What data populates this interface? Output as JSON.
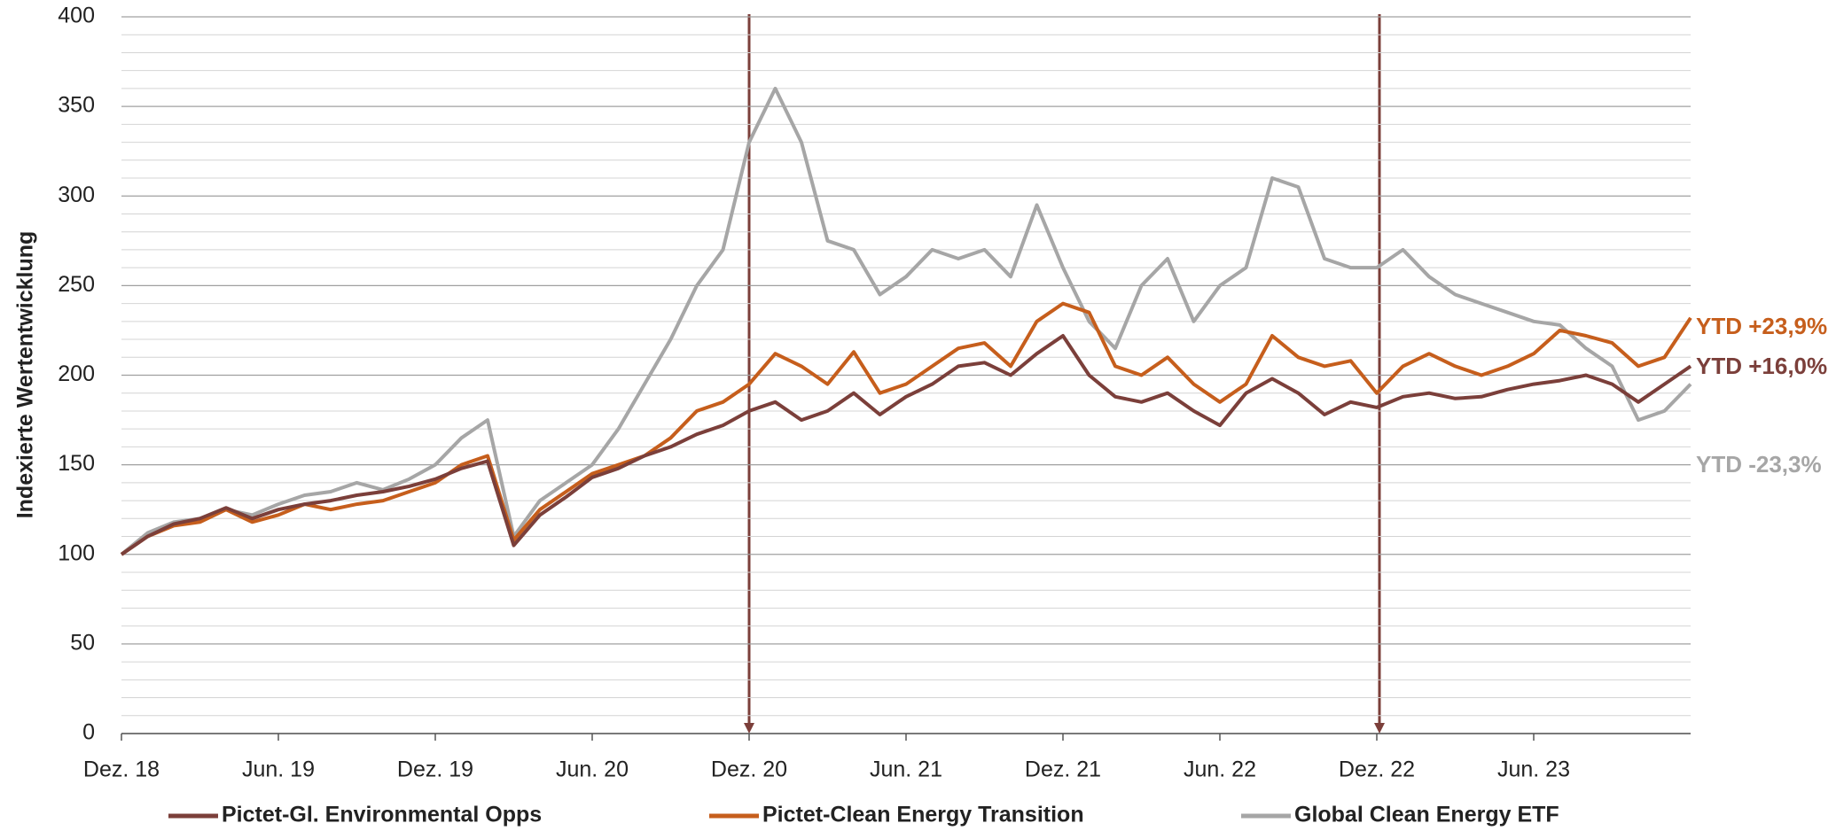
{
  "chart_data": {
    "type": "line",
    "y_label": "Indexierte Wertentwicklung",
    "categories": [
      "Dez. 18",
      null,
      null,
      null,
      null,
      null,
      "Jun. 19",
      null,
      null,
      null,
      null,
      null,
      "Dez. 19",
      null,
      null,
      null,
      null,
      null,
      "Jun. 20",
      null,
      null,
      null,
      null,
      null,
      "Dez. 20",
      null,
      null,
      null,
      null,
      null,
      "Jun. 21",
      null,
      null,
      null,
      null,
      null,
      "Dez. 21",
      null,
      null,
      null,
      null,
      null,
      "Jun. 22",
      null,
      null,
      null,
      null,
      null,
      "Dez. 22",
      null,
      null,
      null,
      null,
      null,
      "Jun. 23",
      null,
      null,
      null,
      null,
      null,
      null
    ],
    "series": [
      {
        "name": "Pictet-Gl. Environmental Opps",
        "color": "#7b3f3a",
        "values": [
          100,
          110,
          117,
          120,
          126,
          120,
          125,
          128,
          130,
          133,
          135,
          138,
          142,
          148,
          152,
          105,
          122,
          132,
          143,
          148,
          155,
          160,
          167,
          172,
          180,
          185,
          175,
          180,
          190,
          178,
          188,
          195,
          205,
          207,
          200,
          212,
          222,
          200,
          188,
          185,
          190,
          180,
          172,
          190,
          198,
          190,
          178,
          185,
          182,
          188,
          190,
          187,
          188,
          192,
          195,
          197,
          200,
          195,
          185,
          195,
          205
        ]
      },
      {
        "name": "Pictet-Clean Energy Transition",
        "color": "#c65e1c",
        "values": [
          100,
          110,
          116,
          118,
          125,
          118,
          122,
          128,
          125,
          128,
          130,
          135,
          140,
          150,
          155,
          108,
          125,
          135,
          145,
          150,
          155,
          165,
          180,
          185,
          195,
          212,
          205,
          195,
          213,
          190,
          195,
          205,
          215,
          218,
          205,
          230,
          240,
          235,
          205,
          200,
          210,
          195,
          185,
          195,
          222,
          210,
          205,
          208,
          190,
          205,
          212,
          205,
          200,
          205,
          212,
          225,
          222,
          218,
          205,
          210,
          232
        ]
      },
      {
        "name": "Global Clean Energy ETF",
        "color": "#a6a6a6",
        "values": [
          100,
          112,
          118,
          120,
          125,
          122,
          128,
          133,
          135,
          140,
          136,
          142,
          150,
          165,
          175,
          110,
          130,
          140,
          150,
          170,
          195,
          220,
          250,
          270,
          330,
          360,
          330,
          275,
          270,
          245,
          255,
          270,
          265,
          270,
          255,
          295,
          260,
          230,
          215,
          250,
          265,
          230,
          250,
          260,
          310,
          305,
          265,
          260,
          260,
          270,
          255,
          245,
          240,
          235,
          230,
          228,
          215,
          205,
          175,
          180,
          195
        ]
      }
    ],
    "annotations": [
      "YTD +23,9%",
      "YTD +16,0%",
      "YTD -23,3%"
    ],
    "ylim": [
      0,
      400
    ],
    "yticks": [
      0,
      50,
      100,
      150,
      200,
      250,
      300,
      350,
      400
    ],
    "grid": true
  }
}
